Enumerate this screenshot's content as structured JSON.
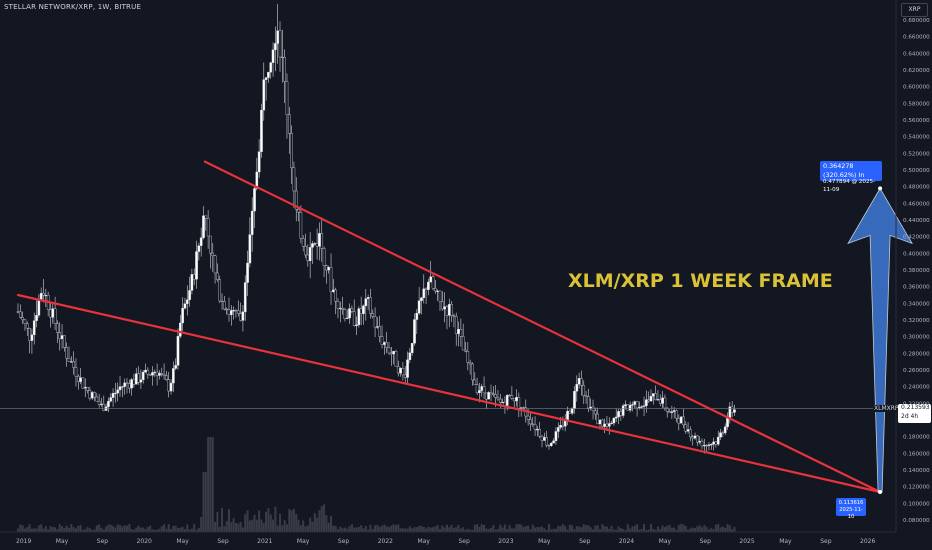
{
  "header": {
    "symbol_title": "STELLAR NETWORK/XRP, 1W, BITRUE",
    "unit": "XRP"
  },
  "headline": "XLM/XRP 1 WEEK FRAME",
  "callouts": {
    "target_line1": "0.364278 (320.62%) In",
    "target_line2": "0.477894 @ 2025-11-09",
    "anchor_price": "0.113616",
    "anchor_date": "2025-11-10"
  },
  "current": {
    "label": "XLMXRP",
    "price": "0.213593",
    "countdown": "2d 4h"
  },
  "colors": {
    "background": "#131722",
    "up_candle": "#ffffff",
    "down_candle": "#000000",
    "trendline": "#e8323c",
    "arrow_fill": "#3a6fc4",
    "headline": "#d9c237",
    "callout": "#2962ff"
  },
  "chart_data": {
    "type": "candlestick",
    "title": "XLM/XRP 1 WEEK FRAME",
    "xlabel": "",
    "ylabel": "",
    "x_range": [
      2019.0,
      2026.2
    ],
    "ylim": [
      0.07,
      0.69
    ],
    "y_ticks": [
      "0.080000",
      "0.100000",
      "0.120000",
      "0.140000",
      "0.160000",
      "0.180000",
      "0.200000",
      "0.220000",
      "0.240000",
      "0.260000",
      "0.280000",
      "0.300000",
      "0.320000",
      "0.340000",
      "0.360000",
      "0.380000",
      "0.400000",
      "0.420000",
      "0.440000",
      "0.460000",
      "0.480000",
      "0.500000",
      "0.520000",
      "0.540000",
      "0.560000",
      "0.580000",
      "0.600000",
      "0.620000",
      "0.640000",
      "0.660000",
      "0.680000"
    ],
    "x_ticks": [
      {
        "label": "2019",
        "t": 2019.0
      },
      {
        "label": "May",
        "t": 2019.33
      },
      {
        "label": "Sep",
        "t": 2019.67
      },
      {
        "label": "2020",
        "t": 2020.0
      },
      {
        "label": "May",
        "t": 2020.33
      },
      {
        "label": "Sep",
        "t": 2020.67
      },
      {
        "label": "2021",
        "t": 2021.0
      },
      {
        "label": "May",
        "t": 2021.33
      },
      {
        "label": "Sep",
        "t": 2021.67
      },
      {
        "label": "2022",
        "t": 2022.0
      },
      {
        "label": "May",
        "t": 2022.33
      },
      {
        "label": "Sep",
        "t": 2022.67
      },
      {
        "label": "2023",
        "t": 2023.0
      },
      {
        "label": "May",
        "t": 2023.33
      },
      {
        "label": "Sep",
        "t": 2023.67
      },
      {
        "label": "2024",
        "t": 2024.0
      },
      {
        "label": "May",
        "t": 2024.33
      },
      {
        "label": "Sep",
        "t": 2024.67
      },
      {
        "label": "2025",
        "t": 2025.0
      },
      {
        "label": "May",
        "t": 2025.33
      },
      {
        "label": "Sep",
        "t": 2025.67
      },
      {
        "label": "2026",
        "t": 2026.0
      }
    ],
    "price_path": [
      [
        2019.0,
        0.33
      ],
      [
        2019.1,
        0.3
      ],
      [
        2019.2,
        0.36
      ],
      [
        2019.3,
        0.32
      ],
      [
        2019.4,
        0.28
      ],
      [
        2019.55,
        0.24
      ],
      [
        2019.7,
        0.215
      ],
      [
        2019.85,
        0.24
      ],
      [
        2020.0,
        0.25
      ],
      [
        2020.15,
        0.26
      ],
      [
        2020.25,
        0.24
      ],
      [
        2020.3,
        0.26
      ],
      [
        2020.35,
        0.32
      ],
      [
        2020.45,
        0.37
      ],
      [
        2020.55,
        0.45
      ],
      [
        2020.65,
        0.36
      ],
      [
        2020.75,
        0.33
      ],
      [
        2020.85,
        0.32
      ],
      [
        2020.95,
        0.45
      ],
      [
        2021.05,
        0.62
      ],
      [
        2021.15,
        0.68
      ],
      [
        2021.25,
        0.55
      ],
      [
        2021.3,
        0.45
      ],
      [
        2021.4,
        0.4
      ],
      [
        2021.5,
        0.42
      ],
      [
        2021.6,
        0.36
      ],
      [
        2021.7,
        0.33
      ],
      [
        2021.8,
        0.32
      ],
      [
        2021.9,
        0.34
      ],
      [
        2022.0,
        0.3
      ],
      [
        2022.1,
        0.28
      ],
      [
        2022.2,
        0.25
      ],
      [
        2022.3,
        0.32
      ],
      [
        2022.4,
        0.37
      ],
      [
        2022.5,
        0.34
      ],
      [
        2022.6,
        0.33
      ],
      [
        2022.7,
        0.28
      ],
      [
        2022.8,
        0.24
      ],
      [
        2022.9,
        0.23
      ],
      [
        2023.0,
        0.22
      ],
      [
        2023.1,
        0.23
      ],
      [
        2023.2,
        0.21
      ],
      [
        2023.3,
        0.19
      ],
      [
        2023.4,
        0.17
      ],
      [
        2023.5,
        0.19
      ],
      [
        2023.6,
        0.22
      ],
      [
        2023.65,
        0.26
      ],
      [
        2023.7,
        0.23
      ],
      [
        2023.8,
        0.2
      ],
      [
        2023.9,
        0.19
      ],
      [
        2024.0,
        0.21
      ],
      [
        2024.1,
        0.22
      ],
      [
        2024.2,
        0.22
      ],
      [
        2024.3,
        0.23
      ],
      [
        2024.4,
        0.21
      ],
      [
        2024.5,
        0.2
      ],
      [
        2024.6,
        0.18
      ],
      [
        2024.7,
        0.17
      ],
      [
        2024.8,
        0.175
      ],
      [
        2024.85,
        0.19
      ],
      [
        2024.9,
        0.21
      ],
      [
        2024.95,
        0.2136
      ]
    ],
    "trendlines": [
      {
        "name": "upper",
        "from": [
          2020.55,
          0.51
        ],
        "to": [
          2026.15,
          0.1136
        ]
      },
      {
        "name": "lower",
        "from": [
          2019.0,
          0.35
        ],
        "to": [
          2026.15,
          0.1136
        ]
      }
    ],
    "projection": {
      "from": [
        2026.15,
        0.1136
      ],
      "to": [
        2026.15,
        0.4779
      ],
      "change": "0.364278 (320.62%)"
    },
    "current_price": 0.213593,
    "grid": false,
    "legend": "none"
  }
}
